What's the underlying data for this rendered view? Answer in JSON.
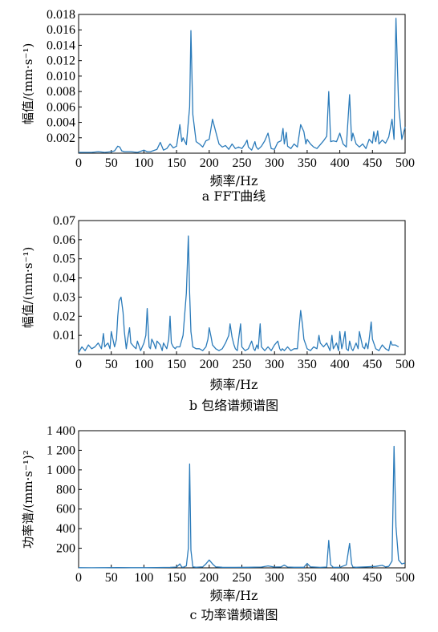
{
  "chart_data": [
    {
      "type": "line",
      "xlabel": "频率/Hz",
      "ylabel": "幅值/(mm·s⁻¹)",
      "caption": "a FFT曲线",
      "xlim": [
        0,
        500
      ],
      "ylim": [
        0,
        0.018
      ],
      "xticks": [
        0,
        50,
        100,
        150,
        200,
        250,
        300,
        350,
        400,
        450,
        500
      ],
      "yticks": [
        0.002,
        0.004,
        0.006,
        0.008,
        0.01,
        0.012,
        0.014,
        0.016,
        0.018
      ],
      "ytick_labels": [
        "0.002",
        "0.004",
        "0.006",
        "0.008",
        "0.010",
        "0.012",
        "0.014",
        "0.016",
        "0.018"
      ],
      "x": [
        0,
        10,
        20,
        30,
        40,
        50,
        55,
        60,
        63,
        66,
        70,
        80,
        90,
        100,
        105,
        110,
        120,
        125,
        130,
        135,
        140,
        145,
        150,
        155,
        158,
        160,
        165,
        170,
        172,
        175,
        180,
        185,
        190,
        195,
        200,
        205,
        210,
        215,
        220,
        225,
        230,
        235,
        240,
        245,
        250,
        255,
        258,
        260,
        265,
        270,
        272,
        275,
        280,
        285,
        290,
        295,
        300,
        305,
        310,
        313,
        315,
        318,
        320,
        325,
        330,
        335,
        340,
        345,
        348,
        350,
        355,
        360,
        365,
        370,
        375,
        380,
        383,
        386,
        390,
        395,
        400,
        405,
        410,
        415,
        418,
        420,
        425,
        430,
        435,
        440,
        445,
        450,
        452,
        455,
        458,
        460,
        465,
        470,
        475,
        480,
        483,
        486,
        490,
        495,
        500
      ],
      "values": [
        0.0001,
        0.0001,
        0.0001,
        0.0002,
        0.0001,
        0.0002,
        0.0003,
        0.0009,
        0.0008,
        0.0003,
        0.0002,
        0.0002,
        0.0001,
        0.0004,
        0.0002,
        0.0002,
        0.0005,
        0.0014,
        0.0004,
        0.0006,
        0.0012,
        0.0007,
        0.0009,
        0.0037,
        0.0015,
        0.002,
        0.0011,
        0.006,
        0.0159,
        0.005,
        0.0015,
        0.0012,
        0.0008,
        0.0016,
        0.0018,
        0.0044,
        0.0028,
        0.0012,
        0.0008,
        0.001,
        0.0005,
        0.0012,
        0.0006,
        0.0008,
        0.0006,
        0.0012,
        0.0017,
        0.0008,
        0.0004,
        0.0015,
        0.0008,
        0.0005,
        0.0009,
        0.0016,
        0.0026,
        0.0006,
        0.0005,
        0.0014,
        0.0016,
        0.0032,
        0.0012,
        0.0027,
        0.0009,
        0.0006,
        0.0012,
        0.0008,
        0.0037,
        0.0028,
        0.0012,
        0.0018,
        0.0012,
        0.0008,
        0.0006,
        0.0011,
        0.0016,
        0.0022,
        0.008,
        0.0015,
        0.0016,
        0.0015,
        0.0026,
        0.0012,
        0.0008,
        0.0076,
        0.0016,
        0.0026,
        0.0012,
        0.0008,
        0.0012,
        0.0006,
        0.0018,
        0.0013,
        0.0028,
        0.0015,
        0.0029,
        0.0012,
        0.0017,
        0.0013,
        0.0021,
        0.0044,
        0.0018,
        0.0175,
        0.0062,
        0.0018,
        0.0034
      ]
    },
    {
      "type": "line",
      "xlabel": "频率/Hz",
      "ylabel": "幅值/(mm·s⁻¹)",
      "caption": "b 包络谱频谱图",
      "xlim": [
        0,
        500
      ],
      "ylim": [
        0,
        0.07
      ],
      "xticks": [
        0,
        50,
        100,
        150,
        200,
        250,
        300,
        350,
        400,
        450,
        500
      ],
      "yticks": [
        0.01,
        0.02,
        0.03,
        0.04,
        0.05,
        0.06,
        0.07
      ],
      "ytick_labels": [
        "0.01",
        "0.02",
        "0.03",
        "0.04",
        "0.05",
        "0.06",
        "0.07"
      ],
      "x": [
        0,
        5,
        10,
        15,
        20,
        25,
        30,
        35,
        38,
        40,
        42,
        45,
        48,
        50,
        55,
        58,
        60,
        62,
        65,
        68,
        70,
        73,
        75,
        78,
        80,
        85,
        88,
        90,
        95,
        100,
        103,
        105,
        108,
        110,
        112,
        115,
        118,
        120,
        125,
        128,
        130,
        135,
        138,
        140,
        142,
        145,
        148,
        150,
        155,
        160,
        165,
        168,
        170,
        172,
        175,
        180,
        185,
        190,
        195,
        198,
        200,
        203,
        205,
        210,
        215,
        220,
        225,
        230,
        232,
        235,
        238,
        240,
        243,
        245,
        248,
        250,
        255,
        260,
        265,
        268,
        270,
        273,
        275,
        278,
        280,
        285,
        290,
        295,
        300,
        305,
        308,
        310,
        312,
        315,
        320,
        325,
        330,
        335,
        338,
        340,
        343,
        345,
        350,
        355,
        360,
        365,
        368,
        370,
        375,
        380,
        385,
        388,
        390,
        395,
        398,
        400,
        403,
        405,
        408,
        410,
        413,
        415,
        418,
        420,
        425,
        428,
        430,
        435,
        438,
        440,
        443,
        445,
        448,
        450,
        455,
        460,
        465,
        470,
        475,
        478,
        480,
        485,
        490
      ],
      "values": [
        0.001,
        0.004,
        0.002,
        0.005,
        0.003,
        0.004,
        0.006,
        0.003,
        0.011,
        0.004,
        0.005,
        0.006,
        0.003,
        0.012,
        0.004,
        0.008,
        0.02,
        0.028,
        0.03,
        0.022,
        0.012,
        0.003,
        0.008,
        0.014,
        0.006,
        0.004,
        0.003,
        0.007,
        0.002,
        0.006,
        0.01,
        0.024,
        0.004,
        0.003,
        0.008,
        0.006,
        0.003,
        0.007,
        0.005,
        0.002,
        0.006,
        0.003,
        0.008,
        0.02,
        0.006,
        0.004,
        0.003,
        0.004,
        0.004,
        0.01,
        0.032,
        0.062,
        0.032,
        0.012,
        0.004,
        0.003,
        0.003,
        0.002,
        0.004,
        0.008,
        0.014,
        0.009,
        0.005,
        0.003,
        0.002,
        0.003,
        0.006,
        0.01,
        0.016,
        0.009,
        0.005,
        0.003,
        0.002,
        0.008,
        0.016,
        0.004,
        0.002,
        0.003,
        0.007,
        0.003,
        0.002,
        0.005,
        0.003,
        0.016,
        0.004,
        0.002,
        0.004,
        0.002,
        0.005,
        0.007,
        0.003,
        0.002,
        0.003,
        0.002,
        0.004,
        0.002,
        0.003,
        0.003,
        0.015,
        0.023,
        0.015,
        0.008,
        0.003,
        0.002,
        0.004,
        0.003,
        0.01,
        0.006,
        0.004,
        0.006,
        0.002,
        0.01,
        0.003,
        0.006,
        0.002,
        0.012,
        0.003,
        0.006,
        0.012,
        0.003,
        0.002,
        0.007,
        0.003,
        0.002,
        0.006,
        0.003,
        0.012,
        0.004,
        0.003,
        0.006,
        0.003,
        0.008,
        0.017,
        0.008,
        0.003,
        0.002,
        0.005,
        0.003,
        0.002,
        0.007,
        0.005,
        0.005,
        0.004
      ]
    },
    {
      "type": "line",
      "xlabel": "频率/Hz",
      "ylabel": "功率谱/(mm·s⁻¹)²",
      "caption": "c 功率谱频谱图",
      "xlim": [
        0,
        500
      ],
      "ylim": [
        0,
        1400
      ],
      "xticks": [
        0,
        50,
        100,
        150,
        200,
        250,
        300,
        350,
        400,
        450,
        500
      ],
      "yticks": [
        200,
        400,
        600,
        800,
        1000,
        1200,
        1400
      ],
      "ytick_labels": [
        "200",
        "400",
        "600",
        "800",
        "1 000",
        "1 200",
        "1 400"
      ],
      "x": [
        0,
        20,
        40,
        60,
        80,
        100,
        120,
        140,
        150,
        155,
        158,
        160,
        165,
        168,
        170,
        172,
        175,
        180,
        190,
        195,
        200,
        205,
        210,
        220,
        240,
        260,
        280,
        290,
        300,
        310,
        315,
        320,
        330,
        345,
        350,
        355,
        370,
        380,
        383,
        386,
        390,
        400,
        410,
        415,
        418,
        420,
        425,
        440,
        455,
        465,
        470,
        475,
        480,
        483,
        486,
        490,
        495,
        500
      ],
      "values": [
        2,
        1,
        2,
        3,
        2,
        2,
        3,
        5,
        8,
        40,
        8,
        6,
        20,
        200,
        1060,
        180,
        10,
        6,
        10,
        40,
        80,
        40,
        10,
        6,
        5,
        6,
        8,
        20,
        8,
        10,
        28,
        8,
        6,
        6,
        45,
        10,
        5,
        8,
        280,
        30,
        5,
        6,
        30,
        250,
        40,
        8,
        6,
        10,
        15,
        25,
        10,
        15,
        70,
        1240,
        420,
        80,
        40,
        50
      ]
    }
  ]
}
